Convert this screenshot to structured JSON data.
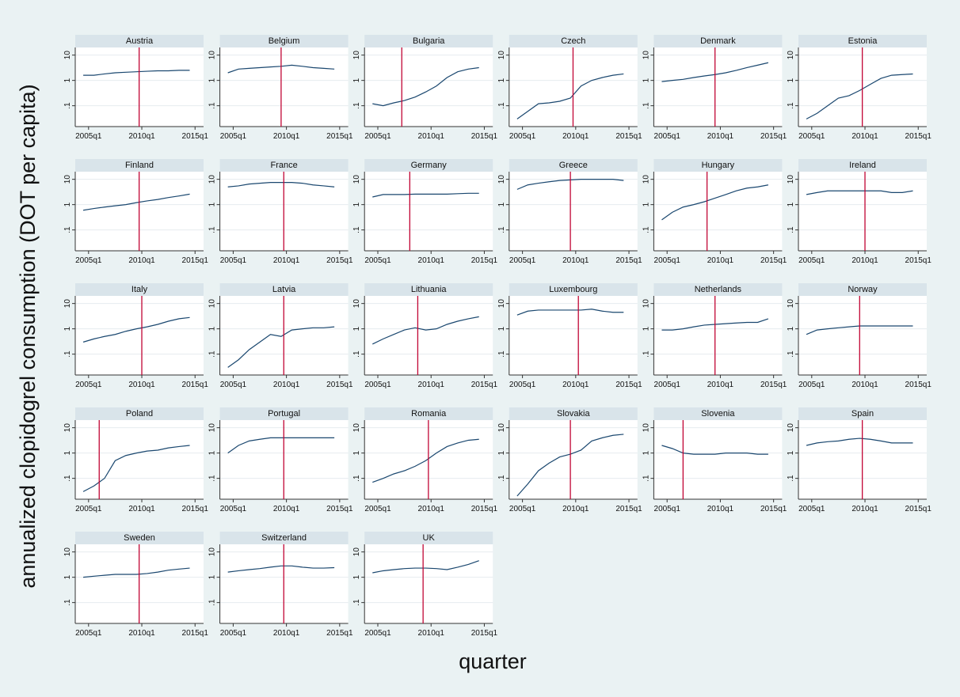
{
  "chart_data": {
    "type": "line",
    "ylabel": "annualized clopidogrel consumption (DOT per capita)",
    "xlabel": "quarter",
    "ylog": true,
    "grid": true,
    "ylim": [
      0.015,
      15
    ],
    "yticks": [
      {
        "value": 0.1,
        "label": ".1"
      },
      1,
      10
    ],
    "xlim": [
      2003.75,
      2015.8
    ],
    "xticks": [
      {
        "value": 2005,
        "label": "2005q1"
      },
      {
        "value": 2010,
        "label": "2010q1"
      },
      {
        "value": 2015,
        "label": "2015q1"
      }
    ],
    "color": "#1a476f",
    "vline_color": "#c10534",
    "x": [
      2004.5,
      2005.5,
      2006.5,
      2007.5,
      2008.5,
      2009.5,
      2010.5,
      2011.5,
      2012.5,
      2013.5,
      2014.5
    ],
    "panels": [
      {
        "title": "Austria",
        "vline": 2009.75,
        "values": [
          1.6,
          1.6,
          1.8,
          2,
          2.1,
          2.2,
          2.3,
          2.4,
          2.4,
          2.5,
          2.5
        ]
      },
      {
        "title": "Belgium",
        "vline": 2009.5,
        "values": [
          2,
          2.8,
          3,
          3.2,
          3.4,
          3.6,
          4,
          3.6,
          3.2,
          3,
          2.8
        ]
      },
      {
        "title": "Bulgaria",
        "vline": 2007.25,
        "values": [
          0.12,
          0.1,
          0.13,
          0.16,
          0.22,
          0.35,
          0.6,
          1.3,
          2.2,
          2.8,
          3.2
        ]
      },
      {
        "title": "Czech",
        "vline": 2009.75,
        "values": [
          0.03,
          0.06,
          0.12,
          0.13,
          0.15,
          0.2,
          0.6,
          1,
          1.3,
          1.6,
          1.8
        ]
      },
      {
        "title": "Denmark",
        "vline": 2009.5,
        "values": [
          0.9,
          1,
          1.1,
          1.3,
          1.5,
          1.7,
          2,
          2.5,
          3.2,
          4,
          5
        ]
      },
      {
        "title": "Estonia",
        "vline": 2009.75,
        "values": [
          0.03,
          0.05,
          0.1,
          0.2,
          0.25,
          0.4,
          0.7,
          1.2,
          1.6,
          1.7,
          1.8
        ]
      },
      {
        "title": "Finland",
        "vline": 2009.75,
        "values": [
          0.6,
          0.7,
          0.8,
          0.9,
          1,
          1.2,
          1.4,
          1.6,
          1.9,
          2.2,
          2.6
        ]
      },
      {
        "title": "France",
        "vline": 2009.75,
        "values": [
          5,
          5.5,
          6.5,
          7,
          7.5,
          7.5,
          7.5,
          7,
          6,
          5.5,
          5
        ]
      },
      {
        "title": "Germany",
        "vline": 2008,
        "values": [
          2,
          2.5,
          2.5,
          2.5,
          2.6,
          2.6,
          2.6,
          2.6,
          2.7,
          2.8,
          2.8
        ]
      },
      {
        "title": "Greece",
        "vline": 2009.5,
        "values": [
          4,
          6,
          7,
          8,
          9,
          9.5,
          10,
          10,
          10,
          10,
          9
        ]
      },
      {
        "title": "Hungary",
        "vline": 2008.75,
        "values": [
          0.25,
          0.5,
          0.8,
          1,
          1.3,
          1.8,
          2.5,
          3.5,
          4.5,
          5,
          6
        ]
      },
      {
        "title": "Ireland",
        "vline": 2010,
        "values": [
          2.5,
          3,
          3.5,
          3.5,
          3.5,
          3.5,
          3.5,
          3.5,
          3,
          3,
          3.5
        ]
      },
      {
        "title": "Italy",
        "vline": 2010,
        "values": [
          0.3,
          0.4,
          0.5,
          0.6,
          0.8,
          1,
          1.2,
          1.5,
          2,
          2.5,
          2.8
        ]
      },
      {
        "title": "Latvia",
        "vline": 2009.75,
        "values": [
          0.03,
          0.06,
          0.15,
          0.3,
          0.6,
          0.5,
          0.9,
          1,
          1.1,
          1.1,
          1.2
        ]
      },
      {
        "title": "Lithuania",
        "vline": 2008.75,
        "values": [
          0.25,
          0.4,
          0.6,
          0.9,
          1.1,
          0.9,
          1,
          1.5,
          2,
          2.5,
          3
        ]
      },
      {
        "title": "Luxembourg",
        "vline": 2010.25,
        "values": [
          3.5,
          5,
          5.5,
          5.5,
          5.5,
          5.5,
          5.5,
          6,
          5,
          4.5,
          4.5
        ]
      },
      {
        "title": "Netherlands",
        "vline": 2009.5,
        "values": [
          0.9,
          0.9,
          1,
          1.2,
          1.4,
          1.5,
          1.6,
          1.7,
          1.8,
          1.8,
          2.5
        ]
      },
      {
        "title": "Norway",
        "vline": 2009.5,
        "values": [
          0.6,
          0.9,
          1,
          1.1,
          1.2,
          1.3,
          1.3,
          1.3,
          1.3,
          1.3,
          1.3
        ]
      },
      {
        "title": "Poland",
        "vline": 2006,
        "values": [
          0.03,
          0.05,
          0.1,
          0.5,
          0.8,
          1,
          1.2,
          1.3,
          1.6,
          1.8,
          2
        ]
      },
      {
        "title": "Portugal",
        "vline": 2009.75,
        "values": [
          1,
          2,
          3,
          3.5,
          4,
          4,
          4,
          4,
          4,
          4,
          4
        ]
      },
      {
        "title": "Romania",
        "vline": 2009.75,
        "values": [
          0.07,
          0.1,
          0.15,
          0.2,
          0.3,
          0.5,
          1,
          1.8,
          2.5,
          3.2,
          3.5
        ]
      },
      {
        "title": "Slovakia",
        "vline": 2009.5,
        "values": [
          0.02,
          0.06,
          0.2,
          0.4,
          0.7,
          0.9,
          1.3,
          3,
          4,
          5,
          5.5
        ]
      },
      {
        "title": "Slovenia",
        "vline": 2006.5,
        "values": [
          2,
          1.5,
          1,
          0.9,
          0.9,
          0.9,
          1,
          1,
          1,
          0.9,
          0.9
        ]
      },
      {
        "title": "Spain",
        "vline": 2009.75,
        "values": [
          2,
          2.5,
          2.8,
          3,
          3.5,
          3.8,
          3.5,
          3,
          2.5,
          2.5,
          2.5
        ]
      },
      {
        "title": "Sweden",
        "vline": 2009.75,
        "values": [
          1,
          1.1,
          1.2,
          1.3,
          1.3,
          1.3,
          1.4,
          1.6,
          1.9,
          2.1,
          2.3
        ]
      },
      {
        "title": "Switzerland",
        "vline": 2009.75,
        "values": [
          1.6,
          1.8,
          2,
          2.2,
          2.5,
          2.8,
          2.8,
          2.5,
          2.3,
          2.3,
          2.4
        ]
      },
      {
        "title": "UK",
        "vline": 2009.25,
        "values": [
          1.5,
          1.8,
          2,
          2.2,
          2.3,
          2.3,
          2.2,
          2,
          2.5,
          3.2,
          4.5
        ]
      }
    ]
  }
}
